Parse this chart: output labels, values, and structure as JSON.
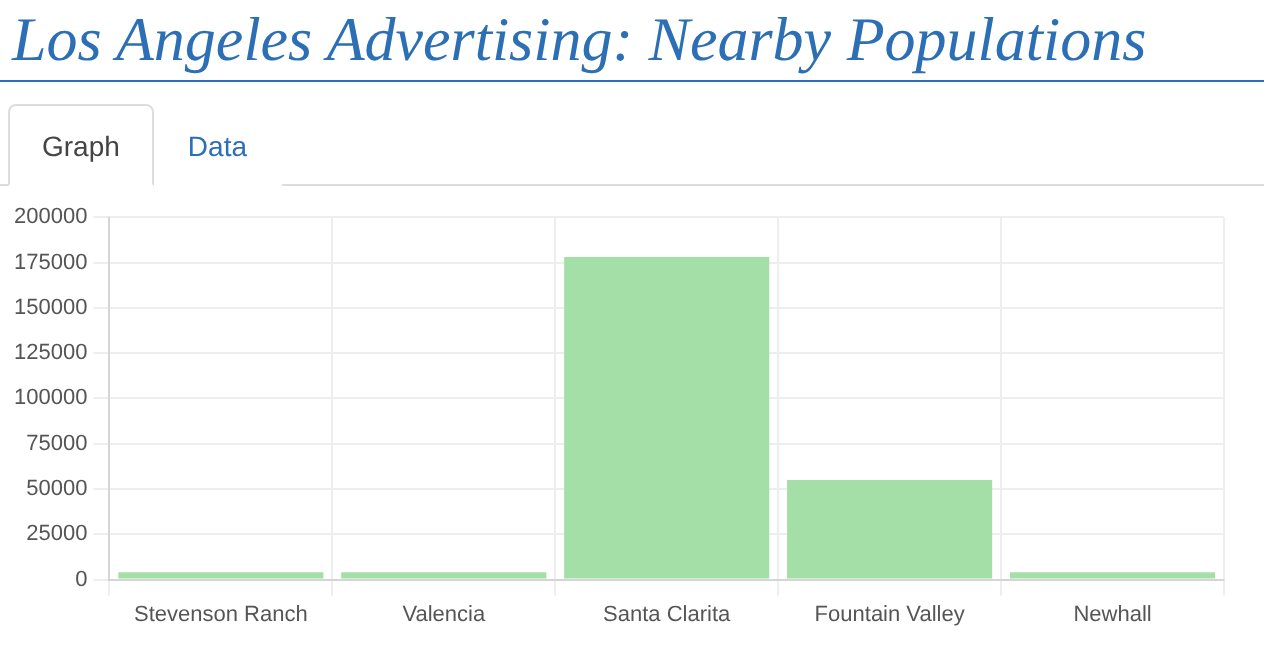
{
  "chart_data": {
    "type": "bar",
    "title": "Los Angeles Advertising: Nearby Populations",
    "annotations": [
      "Graph",
      "Data"
    ],
    "categories": [
      "Stevenson Ranch",
      "Valencia",
      "Santa Clarita",
      "Fountain Valley",
      "Newhall"
    ],
    "values": [
      4000,
      4000,
      178000,
      55000,
      4000
    ],
    "color": "#a3dfa6",
    "ylim": [
      0,
      200000
    ],
    "yticks": [
      0,
      25000,
      50000,
      75000,
      100000,
      125000,
      150000,
      175000,
      200000
    ],
    "grid": true,
    "legend": false
  }
}
